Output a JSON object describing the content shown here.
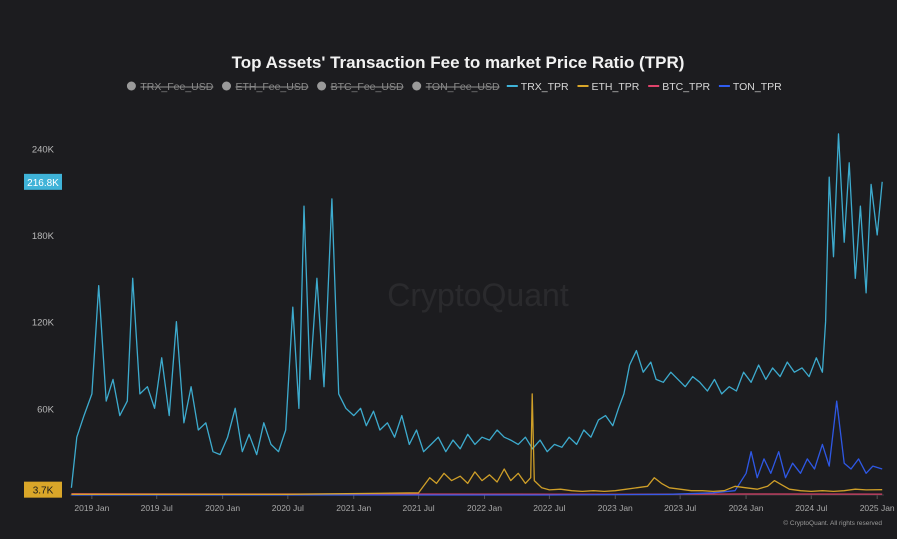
{
  "chart_data": {
    "type": "line",
    "title": "Top Assets' Transaction Fee to market Price Ratio (TPR)",
    "legend": [
      {
        "label": "TRX_Fee_USD",
        "color": "#9a9a9a",
        "marker": "dot",
        "hidden": true
      },
      {
        "label": "ETH_Fee_USD",
        "color": "#9a9a9a",
        "marker": "dot",
        "hidden": true
      },
      {
        "label": "BTC_Fee_USD",
        "color": "#9a9a9a",
        "marker": "dot",
        "hidden": true
      },
      {
        "label": "TON_Fee_USD",
        "color": "#9a9a9a",
        "marker": "dot",
        "hidden": true
      },
      {
        "label": "TRX_TPR",
        "color": "#3fb3d8",
        "marker": "line",
        "hidden": false
      },
      {
        "label": "ETH_TPR",
        "color": "#d9a629",
        "marker": "line",
        "hidden": false
      },
      {
        "label": "BTC_TPR",
        "color": "#e0436b",
        "marker": "line",
        "hidden": false
      },
      {
        "label": "TON_TPR",
        "color": "#2f5cf0",
        "marker": "line",
        "hidden": false
      }
    ],
    "legend_position": "top-center",
    "y_ticks": [
      "240K",
      "180K",
      "120K",
      "60K"
    ],
    "y_tick_values": [
      240000,
      180000,
      120000,
      60000
    ],
    "ylim": [
      0,
      270000
    ],
    "x_ticks": [
      "2019 Jan",
      "2019 Jul",
      "2020 Jan",
      "2020 Jul",
      "2021 Jan",
      "2021 Jul",
      "2022 Jan",
      "2022 Jul",
      "2023 Jan",
      "2023 Jul",
      "2024 Jan",
      "2024 Jul",
      "2025 Jan"
    ],
    "xlim": [
      "2018-11-01",
      "2025-01-20"
    ],
    "grid": false,
    "badges": [
      {
        "text": "216.8K",
        "value": 216800,
        "color": "#3fb3d8"
      },
      {
        "text": "3.7K",
        "value": 3700,
        "color": "#d9a629"
      }
    ],
    "series": [
      {
        "name": "TRX_TPR",
        "color": "#3fb3d8",
        "x": [
          "2018-11-05",
          "2018-11-20",
          "2018-12-10",
          "2019-01-01",
          "2019-01-20",
          "2019-02-10",
          "2019-03-01",
          "2019-03-20",
          "2019-04-10",
          "2019-04-25",
          "2019-05-15",
          "2019-06-05",
          "2019-06-25",
          "2019-07-15",
          "2019-08-05",
          "2019-08-25",
          "2019-09-15",
          "2019-10-05",
          "2019-10-25",
          "2019-11-15",
          "2019-12-05",
          "2019-12-25",
          "2020-01-15",
          "2020-02-05",
          "2020-02-25",
          "2020-03-15",
          "2020-04-05",
          "2020-04-25",
          "2020-05-15",
          "2020-06-05",
          "2020-06-25",
          "2020-07-15",
          "2020-08-01",
          "2020-08-15",
          "2020-09-01",
          "2020-09-20",
          "2020-10-10",
          "2020-11-01",
          "2020-11-20",
          "2020-12-10",
          "2021-01-01",
          "2021-01-20",
          "2021-02-05",
          "2021-02-25",
          "2021-03-15",
          "2021-04-05",
          "2021-04-25",
          "2021-05-15",
          "2021-06-05",
          "2021-06-25",
          "2021-07-15",
          "2021-08-05",
          "2021-08-25",
          "2021-09-15",
          "2021-10-05",
          "2021-10-25",
          "2021-11-15",
          "2021-12-05",
          "2021-12-25",
          "2022-01-15",
          "2022-02-05",
          "2022-02-25",
          "2022-03-15",
          "2022-04-05",
          "2022-04-25",
          "2022-05-15",
          "2022-06-05",
          "2022-06-25",
          "2022-07-15",
          "2022-08-05",
          "2022-08-25",
          "2022-09-15",
          "2022-10-05",
          "2022-10-25",
          "2022-11-15",
          "2022-12-05",
          "2022-12-25",
          "2023-01-10",
          "2023-01-25",
          "2023-02-10",
          "2023-03-01",
          "2023-03-20",
          "2023-04-10",
          "2023-04-25",
          "2023-05-15",
          "2023-06-05",
          "2023-06-25",
          "2023-07-15",
          "2023-08-05",
          "2023-08-25",
          "2023-09-15",
          "2023-10-05",
          "2023-10-25",
          "2023-11-15",
          "2023-12-05",
          "2023-12-25",
          "2024-01-15",
          "2024-02-05",
          "2024-02-25",
          "2024-03-15",
          "2024-04-05",
          "2024-04-25",
          "2024-05-15",
          "2024-06-05",
          "2024-06-25",
          "2024-07-15",
          "2024-08-01",
          "2024-08-10",
          "2024-08-20",
          "2024-09-01",
          "2024-09-15",
          "2024-10-01",
          "2024-10-15",
          "2024-11-01",
          "2024-11-15",
          "2024-12-01",
          "2024-12-15",
          "2025-01-01",
          "2025-01-15"
        ],
        "y": [
          5000,
          40000,
          55000,
          70000,
          145000,
          65000,
          80000,
          55000,
          65000,
          150000,
          70000,
          75000,
          60000,
          95000,
          55000,
          120000,
          50000,
          75000,
          45000,
          50000,
          30000,
          28000,
          40000,
          60000,
          30000,
          42000,
          28000,
          50000,
          35000,
          30000,
          45000,
          130000,
          60000,
          200000,
          80000,
          150000,
          75000,
          205000,
          70000,
          60000,
          55000,
          60000,
          48000,
          58000,
          45000,
          50000,
          40000,
          55000,
          35000,
          45000,
          30000,
          35000,
          40000,
          30000,
          38000,
          32000,
          42000,
          35000,
          40000,
          38000,
          45000,
          40000,
          38000,
          35000,
          40000,
          32000,
          38000,
          30000,
          35000,
          33000,
          40000,
          35000,
          45000,
          40000,
          52000,
          55000,
          48000,
          60000,
          70000,
          90000,
          100000,
          85000,
          92000,
          80000,
          78000,
          85000,
          80000,
          75000,
          82000,
          78000,
          72000,
          80000,
          70000,
          75000,
          72000,
          85000,
          78000,
          90000,
          80000,
          88000,
          82000,
          92000,
          85000,
          88000,
          82000,
          95000,
          85000,
          120000,
          220000,
          165000,
          250000,
          175000,
          230000,
          150000,
          200000,
          140000,
          215000,
          180000,
          216800
        ]
      },
      {
        "name": "ETH_TPR",
        "color": "#d9a629",
        "x": [
          "2018-11-05",
          "2019-07-01",
          "2020-07-01",
          "2021-07-01",
          "2021-08-01",
          "2021-08-20",
          "2021-09-10",
          "2021-10-01",
          "2021-10-25",
          "2021-11-15",
          "2021-12-05",
          "2021-12-25",
          "2022-01-15",
          "2022-02-05",
          "2022-02-25",
          "2022-03-15",
          "2022-04-05",
          "2022-04-25",
          "2022-05-10",
          "2022-05-14",
          "2022-05-20",
          "2022-06-10",
          "2022-07-01",
          "2022-08-01",
          "2022-09-01",
          "2022-10-01",
          "2022-11-01",
          "2022-12-01",
          "2023-01-01",
          "2023-02-01",
          "2023-03-01",
          "2023-04-01",
          "2023-04-20",
          "2023-05-10",
          "2023-06-01",
          "2023-07-01",
          "2023-08-01",
          "2023-09-01",
          "2023-10-01",
          "2023-11-01",
          "2023-12-01",
          "2024-01-01",
          "2024-02-01",
          "2024-03-01",
          "2024-03-20",
          "2024-04-10",
          "2024-05-01",
          "2024-06-01",
          "2024-07-01",
          "2024-08-01",
          "2024-09-01",
          "2024-10-01",
          "2024-11-01",
          "2024-12-01",
          "2025-01-15"
        ],
        "y": [
          500,
          500,
          500,
          1500,
          12000,
          8000,
          15000,
          10000,
          13000,
          8000,
          16000,
          10000,
          14000,
          9000,
          18000,
          10000,
          15000,
          8000,
          12000,
          70000,
          10000,
          5000,
          3500,
          4000,
          3000,
          2500,
          3000,
          2500,
          3000,
          4000,
          5000,
          6000,
          12000,
          8000,
          5000,
          4000,
          3000,
          3000,
          2500,
          3000,
          6000,
          5000,
          4000,
          6000,
          10000,
          7000,
          4000,
          3000,
          2500,
          3000,
          2500,
          3000,
          4000,
          3500,
          3700
        ]
      },
      {
        "name": "BTC_TPR",
        "color": "#e0436b",
        "x": [
          "2018-11-05",
          "2020-01-01",
          "2022-01-01",
          "2023-01-01",
          "2024-01-01",
          "2025-01-15"
        ],
        "y": [
          800,
          700,
          600,
          500,
          700,
          600
        ]
      },
      {
        "name": "TON_TPR",
        "color": "#2f5cf0",
        "x": [
          "2018-11-05",
          "2021-07-01",
          "2022-07-01",
          "2023-06-01",
          "2023-10-01",
          "2023-12-01",
          "2024-01-01",
          "2024-01-15",
          "2024-02-01",
          "2024-02-20",
          "2024-03-10",
          "2024-04-01",
          "2024-04-20",
          "2024-05-10",
          "2024-06-01",
          "2024-06-20",
          "2024-07-10",
          "2024-08-01",
          "2024-08-20",
          "2024-09-10",
          "2024-10-01",
          "2024-10-20",
          "2024-11-10",
          "2024-12-01",
          "2024-12-20",
          "2025-01-15"
        ],
        "y": [
          0,
          0,
          0,
          500,
          1500,
          3000,
          15000,
          30000,
          12000,
          25000,
          15000,
          30000,
          12000,
          22000,
          15000,
          25000,
          18000,
          35000,
          20000,
          65000,
          22000,
          18000,
          25000,
          15000,
          20000,
          18000
        ]
      }
    ]
  },
  "watermark": "CryptoQuant",
  "credit": "© CryptoQuant. All rights reserved"
}
